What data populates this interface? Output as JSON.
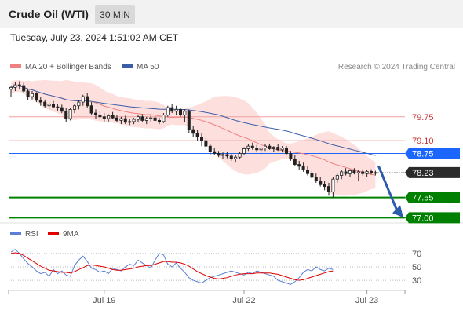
{
  "header": {
    "title": "Crude Oil (WTI)",
    "interval": "30 MIN"
  },
  "datetime": "Tuesday, July 23, 2024 1:51:02 AM CET",
  "copyright": "Research © 2024 Trading Central",
  "colors": {
    "bollinger": "#f08080",
    "band_fill": "#fde0de",
    "ma50": "#3a5fa8",
    "support": "#008000",
    "pivot": "#1a66ff",
    "resistance": "#f0a0a0",
    "candle": "#222222",
    "rsi": "#5b7fd6",
    "rsi_ma": "#e00000"
  },
  "chart_data": [
    {
      "type": "candlestick",
      "legend": [
        {
          "name": "MA 20 + Bollinger Bands",
          "color": "#f08080"
        },
        {
          "name": "MA 50",
          "color": "#3a5fa8"
        }
      ],
      "ylim": [
        76.9,
        80.9
      ],
      "x_ticks": [
        {
          "label": "Jul 19",
          "index": 22
        },
        {
          "label": "Jul 22",
          "index": 55
        },
        {
          "label": "Jul 23",
          "index": 84
        }
      ],
      "levels": [
        {
          "value": 79.75,
          "label": "79.75",
          "kind": "resistance"
        },
        {
          "value": 79.1,
          "label": "79.10",
          "kind": "resistance"
        },
        {
          "value": 78.75,
          "label": "78.75",
          "kind": "pivot"
        },
        {
          "value": 77.55,
          "label": "77.55",
          "kind": "support"
        },
        {
          "value": 77.0,
          "label": "77.00",
          "kind": "support"
        }
      ],
      "last_price": {
        "value": 78.23,
        "label": "78.23"
      },
      "candles": [
        [
          80.5,
          80.6,
          80.3,
          80.55
        ],
        [
          80.55,
          80.7,
          80.45,
          80.62
        ],
        [
          80.62,
          80.72,
          80.5,
          80.6
        ],
        [
          80.6,
          80.68,
          80.4,
          80.45
        ],
        [
          80.45,
          80.52,
          80.2,
          80.3
        ],
        [
          80.3,
          80.45,
          80.22,
          80.38
        ],
        [
          80.38,
          80.42,
          80.15,
          80.2
        ],
        [
          80.2,
          80.28,
          80.05,
          80.15
        ],
        [
          80.15,
          80.22,
          80.0,
          80.05
        ],
        [
          80.05,
          80.15,
          79.95,
          80.1
        ],
        [
          80.1,
          80.18,
          79.98,
          80.02
        ],
        [
          80.02,
          80.1,
          79.9,
          80.0
        ],
        [
          80.0,
          80.08,
          79.85,
          79.9
        ],
        [
          79.9,
          80.0,
          79.6,
          79.7
        ],
        [
          79.7,
          79.98,
          79.65,
          79.95
        ],
        [
          79.95,
          80.1,
          79.85,
          80.05
        ],
        [
          80.05,
          80.2,
          79.95,
          80.15
        ],
        [
          80.15,
          80.35,
          80.05,
          80.3
        ],
        [
          80.3,
          80.4,
          80.0,
          80.05
        ],
        [
          80.05,
          80.15,
          79.8,
          79.85
        ],
        [
          79.85,
          79.95,
          79.7,
          79.8
        ],
        [
          79.8,
          79.9,
          79.65,
          79.75
        ],
        [
          79.75,
          79.85,
          79.6,
          79.7
        ],
        [
          79.7,
          79.82,
          79.62,
          79.78
        ],
        [
          79.78,
          79.88,
          79.68,
          79.72
        ],
        [
          79.72,
          79.8,
          79.6,
          79.65
        ],
        [
          79.65,
          79.75,
          79.55,
          79.7
        ],
        [
          79.7,
          79.78,
          79.55,
          79.6
        ],
        [
          79.6,
          79.7,
          79.52,
          79.62
        ],
        [
          79.62,
          79.72,
          79.55,
          79.68
        ],
        [
          79.68,
          79.8,
          79.6,
          79.75
        ],
        [
          79.75,
          79.82,
          79.62,
          79.65
        ],
        [
          79.65,
          79.75,
          79.55,
          79.7
        ],
        [
          79.7,
          79.8,
          79.62,
          79.72
        ],
        [
          79.72,
          79.8,
          79.6,
          79.65
        ],
        [
          79.65,
          79.72,
          79.55,
          79.62
        ],
        [
          79.62,
          79.85,
          79.58,
          79.8
        ],
        [
          79.8,
          80.05,
          79.75,
          80.0
        ],
        [
          80.0,
          80.1,
          79.85,
          79.9
        ],
        [
          79.9,
          80.05,
          79.8,
          79.95
        ],
        [
          79.95,
          80.0,
          79.75,
          79.8
        ],
        [
          79.8,
          79.95,
          79.6,
          79.9
        ],
        [
          79.9,
          79.95,
          79.3,
          79.4
        ],
        [
          79.4,
          79.5,
          79.2,
          79.3
        ],
        [
          79.3,
          79.4,
          79.1,
          79.2
        ],
        [
          79.2,
          79.3,
          78.95,
          79.1
        ],
        [
          79.1,
          79.2,
          78.85,
          78.95
        ],
        [
          78.95,
          79.0,
          78.7,
          78.8
        ],
        [
          78.8,
          78.9,
          78.7,
          78.75
        ],
        [
          78.75,
          78.82,
          78.65,
          78.7
        ],
        [
          78.7,
          78.78,
          78.6,
          78.72
        ],
        [
          78.72,
          78.8,
          78.62,
          78.68
        ],
        [
          78.68,
          78.75,
          78.55,
          78.6
        ],
        [
          78.6,
          78.7,
          78.5,
          78.65
        ],
        [
          78.65,
          78.8,
          78.6,
          78.75
        ],
        [
          78.75,
          78.92,
          78.7,
          78.88
        ],
        [
          78.88,
          79.0,
          78.82,
          78.95
        ],
        [
          78.95,
          79.05,
          78.85,
          78.9
        ],
        [
          78.9,
          78.98,
          78.8,
          78.85
        ],
        [
          78.85,
          78.95,
          78.75,
          78.9
        ],
        [
          78.9,
          79.0,
          78.82,
          78.95
        ],
        [
          78.95,
          79.02,
          78.85,
          78.88
        ],
        [
          78.88,
          78.95,
          78.8,
          78.92
        ],
        [
          78.92,
          79.0,
          78.82,
          78.85
        ],
        [
          78.85,
          78.95,
          78.78,
          78.9
        ],
        [
          78.9,
          78.95,
          78.7,
          78.75
        ],
        [
          78.75,
          78.82,
          78.55,
          78.6
        ],
        [
          78.6,
          78.7,
          78.4,
          78.45
        ],
        [
          78.45,
          78.55,
          78.3,
          78.4
        ],
        [
          78.4,
          78.5,
          78.25,
          78.3
        ],
        [
          78.3,
          78.4,
          78.15,
          78.2
        ],
        [
          78.2,
          78.3,
          78.05,
          78.1
        ],
        [
          78.1,
          78.2,
          77.95,
          78.0
        ],
        [
          78.0,
          78.1,
          77.85,
          77.9
        ],
        [
          77.9,
          78.0,
          77.75,
          77.85
        ],
        [
          77.85,
          77.95,
          77.6,
          77.7
        ],
        [
          77.7,
          78.1,
          77.55,
          78.05
        ],
        [
          78.05,
          78.2,
          77.95,
          78.15
        ],
        [
          78.15,
          78.3,
          78.05,
          78.25
        ],
        [
          78.25,
          78.35,
          78.15,
          78.2
        ],
        [
          78.2,
          78.32,
          78.1,
          78.28
        ],
        [
          78.28,
          78.35,
          78.18,
          78.22
        ],
        [
          78.22,
          78.3,
          78.0,
          78.25
        ],
        [
          78.25,
          78.32,
          78.15,
          78.2
        ],
        [
          78.2,
          78.3,
          78.12,
          78.26
        ],
        [
          78.26,
          78.32,
          78.18,
          78.22
        ],
        [
          78.22,
          78.28,
          78.15,
          78.23
        ]
      ]
    },
    {
      "type": "line",
      "legend": [
        {
          "name": "RSI",
          "color": "#5b7fd6"
        },
        {
          "name": "9MA",
          "color": "#e00000"
        }
      ],
      "ylim": [
        15,
        85
      ],
      "y_ticks": [
        70,
        50,
        30
      ],
      "series": [
        {
          "name": "RSI",
          "values": [
            72,
            76,
            70,
            62,
            55,
            50,
            44,
            40,
            42,
            36,
            46,
            40,
            44,
            38,
            36,
            52,
            60,
            66,
            58,
            48,
            46,
            42,
            44,
            40,
            48,
            46,
            44,
            50,
            54,
            52,
            60,
            56,
            52,
            48,
            60,
            70,
            68,
            54,
            50,
            56,
            48,
            42,
            34,
            30,
            28,
            26,
            30,
            34,
            36,
            38,
            40,
            42,
            44,
            42,
            40,
            38,
            42,
            40,
            44,
            42,
            40,
            38,
            36,
            30,
            28,
            26,
            24,
            28,
            34,
            42,
            46,
            44,
            50,
            46,
            44,
            48,
            46
          ]
        },
        {
          "name": "9MA",
          "values": [
            70,
            71,
            70,
            67,
            63,
            59,
            55,
            51,
            48,
            45,
            44,
            43,
            42,
            42,
            41,
            43,
            46,
            49,
            52,
            53,
            52,
            51,
            50,
            48,
            46,
            45,
            45,
            46,
            47,
            48,
            50,
            51,
            52,
            52,
            54,
            56,
            58,
            58,
            57,
            57,
            56,
            54,
            51,
            47,
            43,
            40,
            37,
            35,
            33,
            32,
            33,
            34,
            36,
            38,
            39,
            40,
            40,
            40,
            41,
            41,
            41,
            41,
            40,
            39,
            37,
            35,
            33,
            31,
            30,
            31,
            33,
            35,
            37,
            39,
            41,
            43,
            44
          ]
        }
      ]
    }
  ]
}
